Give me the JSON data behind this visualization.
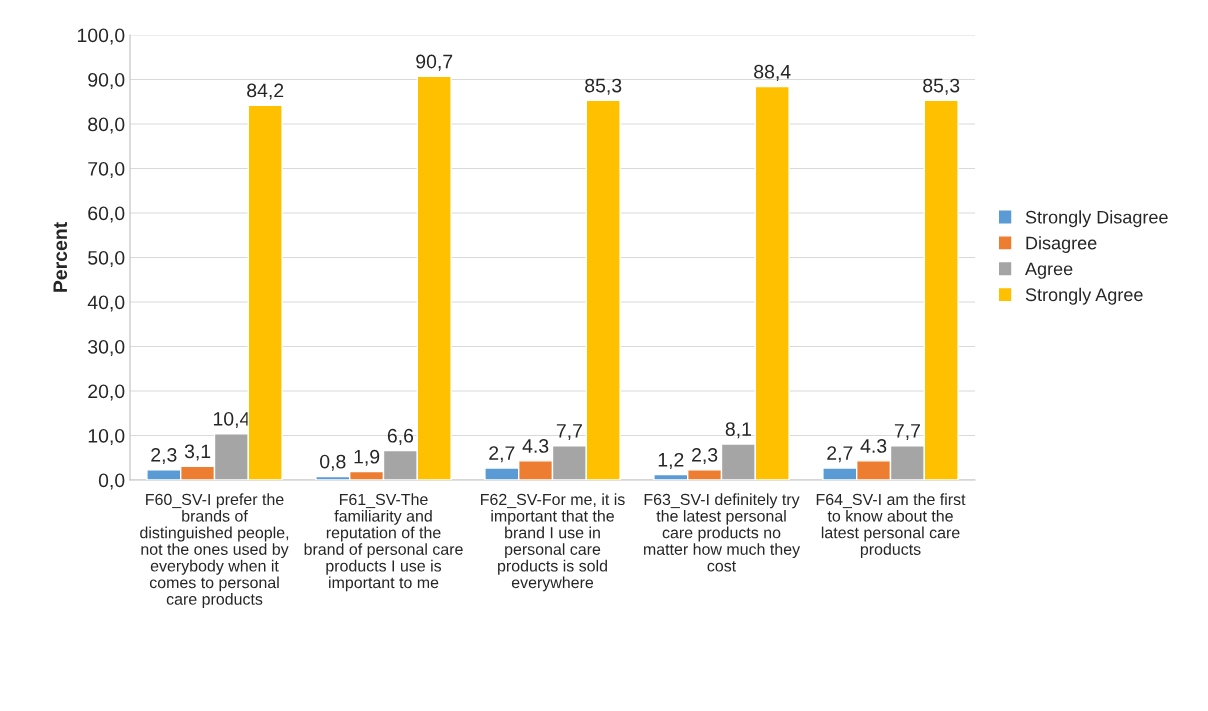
{
  "chart_data": {
    "type": "bar",
    "ylabel": "Percent",
    "categories": [
      "F60_SV-I prefer the brands of distinguished people, not the ones used by everybody when it comes to personal care products",
      "F61_SV-The familiarity and reputation of the brand of personal care products I use is important to me",
      "F62_SV-For me, it is important that the brand I use in personal care products is sold everywhere",
      "F63_SV-I definitely try the latest personal care products no matter how much they cost",
      "F64_SV-I am the first to know about the latest personal care products"
    ],
    "series": [
      {
        "name": "Strongly Disagree",
        "color": "#5b9bd5",
        "values": [
          2.3,
          0.8,
          2.7,
          1.2,
          2.7
        ],
        "value_labels": [
          "2,3",
          "0,8",
          "2,7",
          "1,2",
          "2,7"
        ]
      },
      {
        "name": "Disagree",
        "color": "#ed7d31",
        "values": [
          3.1,
          1.9,
          4.3,
          2.3,
          4.3
        ],
        "value_labels": [
          "3,1",
          "1,9",
          "4.3",
          "2,3",
          "4.3"
        ]
      },
      {
        "name": "Agree",
        "color": "#a5a5a5",
        "values": [
          10.4,
          6.6,
          7.7,
          8.1,
          7.7
        ],
        "value_labels": [
          "10,4",
          "6,6",
          "7,7",
          "8,1",
          "7,7"
        ]
      },
      {
        "name": "Strongly Agree",
        "color": "#ffc000",
        "values": [
          84.2,
          90.7,
          85.3,
          88.4,
          85.3
        ],
        "value_labels": [
          "84,2",
          "90,7",
          "85,3",
          "88,4",
          "85,3"
        ]
      }
    ],
    "ylim": [
      0,
      100
    ],
    "yticks": [
      {
        "value": 0,
        "label": "0,0"
      },
      {
        "value": 10,
        "label": "10,0"
      },
      {
        "value": 20,
        "label": "20,0"
      },
      {
        "value": 30,
        "label": "30,0"
      },
      {
        "value": 40,
        "label": "40,0"
      },
      {
        "value": 50,
        "label": "50,0"
      },
      {
        "value": 60,
        "label": "60,0"
      },
      {
        "value": 70,
        "label": "70,0"
      },
      {
        "value": 80,
        "label": "80,0"
      },
      {
        "value": 90,
        "label": "90,0"
      },
      {
        "value": 100,
        "label": "100,0"
      }
    ],
    "grid": "y",
    "legend": "right"
  }
}
